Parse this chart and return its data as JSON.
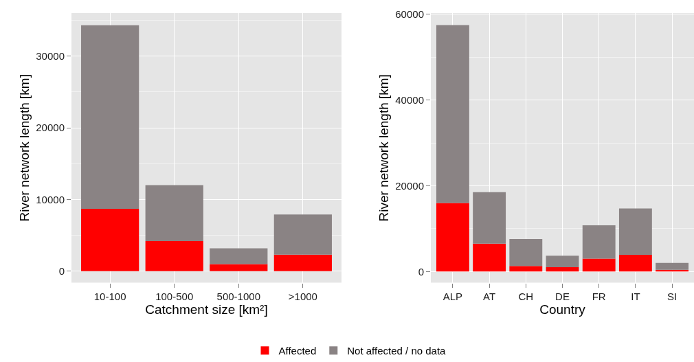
{
  "chart_data": [
    {
      "type": "bar",
      "stacked": true,
      "categories": [
        "10-100",
        "100-500",
        "500-1000",
        ">1000"
      ],
      "xlabel": "Catchment size [km²]",
      "ylabel": "River network length [km]",
      "ylim": [
        -1600,
        36000
      ],
      "yticks": [
        0,
        10000,
        20000,
        30000
      ],
      "grid": true,
      "legend": "bottom",
      "series": [
        {
          "name": "Affected",
          "color": "#ff0000",
          "values": [
            8700,
            4200,
            1000,
            2300
          ]
        },
        {
          "name": "Not affected / no data",
          "color": "#8a8384",
          "values": [
            25600,
            7800,
            2200,
            5600
          ]
        }
      ]
    },
    {
      "type": "bar",
      "stacked": true,
      "categories": [
        "ALP",
        "AT",
        "CH",
        "DE",
        "FR",
        "IT",
        "SI"
      ],
      "xlabel": "Country",
      "ylabel": "River network length [km]",
      "ylim": [
        -2600,
        60300
      ],
      "yticks": [
        0,
        20000,
        40000,
        60000
      ],
      "grid": true,
      "series": [
        {
          "color": "#ff0000",
          "values": [
            16000,
            6500,
            1300,
            1000,
            3000,
            3900,
            400
          ]
        },
        {
          "color": "#8a8384",
          "values": [
            41500,
            12000,
            6300,
            2700,
            7800,
            10800,
            1600
          ]
        }
      ]
    }
  ]
}
